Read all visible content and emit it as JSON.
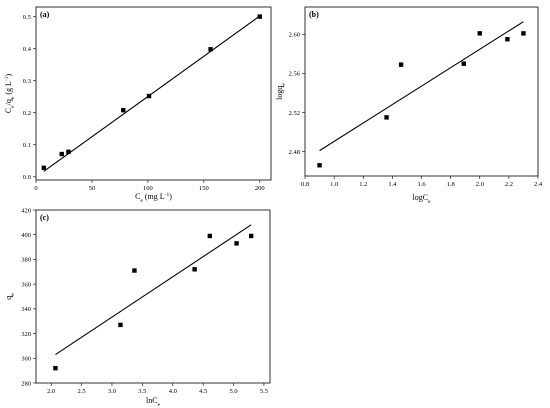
{
  "chart_data": [
    {
      "type": "scatter",
      "panel_label": "(a)",
      "xlabel": "Ce (mg L⁻¹)",
      "ylabel": "Ce/qe (g L⁻¹)",
      "xlim": [
        0,
        210
      ],
      "ylim": [
        -0.01,
        0.53
      ],
      "xticks": [
        0,
        50,
        100,
        150,
        200
      ],
      "xtick_labels": [
        "0",
        "50",
        "100",
        "150",
        "200"
      ],
      "yticks": [
        0.0,
        0.1,
        0.2,
        0.3,
        0.4,
        0.5
      ],
      "ytick_labels": [
        "0.0",
        "0.1",
        "0.2",
        "0.3",
        "0.4",
        "0.5"
      ],
      "points": {
        "x": [
          7,
          23,
          29,
          78,
          101,
          156,
          200
        ],
        "y": [
          0.028,
          0.071,
          0.078,
          0.208,
          0.252,
          0.398,
          0.5
        ]
      },
      "fit_line": {
        "x": [
          7,
          200
        ],
        "y": [
          0.017,
          0.502
        ]
      }
    },
    {
      "type": "scatter",
      "panel_label": "(b)",
      "xlabel": "logCe",
      "ylabel": "logqe",
      "xlim": [
        0.8,
        2.4
      ],
      "ylim": [
        2.455,
        2.628
      ],
      "xticks": [
        0.8,
        1.0,
        1.2,
        1.4,
        1.6,
        1.8,
        2.0,
        2.2,
        2.4
      ],
      "xtick_labels": [
        "0.8",
        "1.0",
        "1.2",
        "1.4",
        "1.6",
        "1.8",
        "2.0",
        "2.2",
        "2.4"
      ],
      "yticks": [
        2.48,
        2.52,
        2.56,
        2.6
      ],
      "ytick_labels": [
        "2.48",
        "2.52",
        "2.56",
        "2.60"
      ],
      "points": {
        "x": [
          0.9,
          1.36,
          1.46,
          1.89,
          2.0,
          2.19,
          2.3
        ],
        "y": [
          2.466,
          2.515,
          2.569,
          2.57,
          2.601,
          2.595,
          2.601
        ]
      },
      "fit_line": {
        "x": [
          0.9,
          2.3
        ],
        "y": [
          2.481,
          2.613
        ]
      }
    },
    {
      "type": "scatter",
      "panel_label": "(c)",
      "xlabel": "lnCe",
      "ylabel": "qe",
      "xlim": [
        1.75,
        5.6
      ],
      "ylim": [
        280,
        420
      ],
      "xticks": [
        2.0,
        2.5,
        3.0,
        3.5,
        4.0,
        4.5,
        5.0,
        5.5
      ],
      "xtick_labels": [
        "2.0",
        "2.5",
        "3.0",
        "3.5",
        "4.0",
        "4.5",
        "5.0",
        "5.5"
      ],
      "yticks": [
        280,
        300,
        320,
        340,
        360,
        380,
        400,
        420
      ],
      "ytick_labels": [
        "280",
        "300",
        "320",
        "340",
        "360",
        "380",
        "400",
        "420"
      ],
      "points": {
        "x": [
          2.07,
          3.14,
          3.37,
          4.36,
          4.61,
          5.05,
          5.29
        ],
        "y": [
          292,
          327,
          371,
          372,
          399,
          393,
          399
        ]
      },
      "fit_line": {
        "x": [
          2.07,
          5.29
        ],
        "y": [
          303,
          408
        ]
      }
    }
  ]
}
